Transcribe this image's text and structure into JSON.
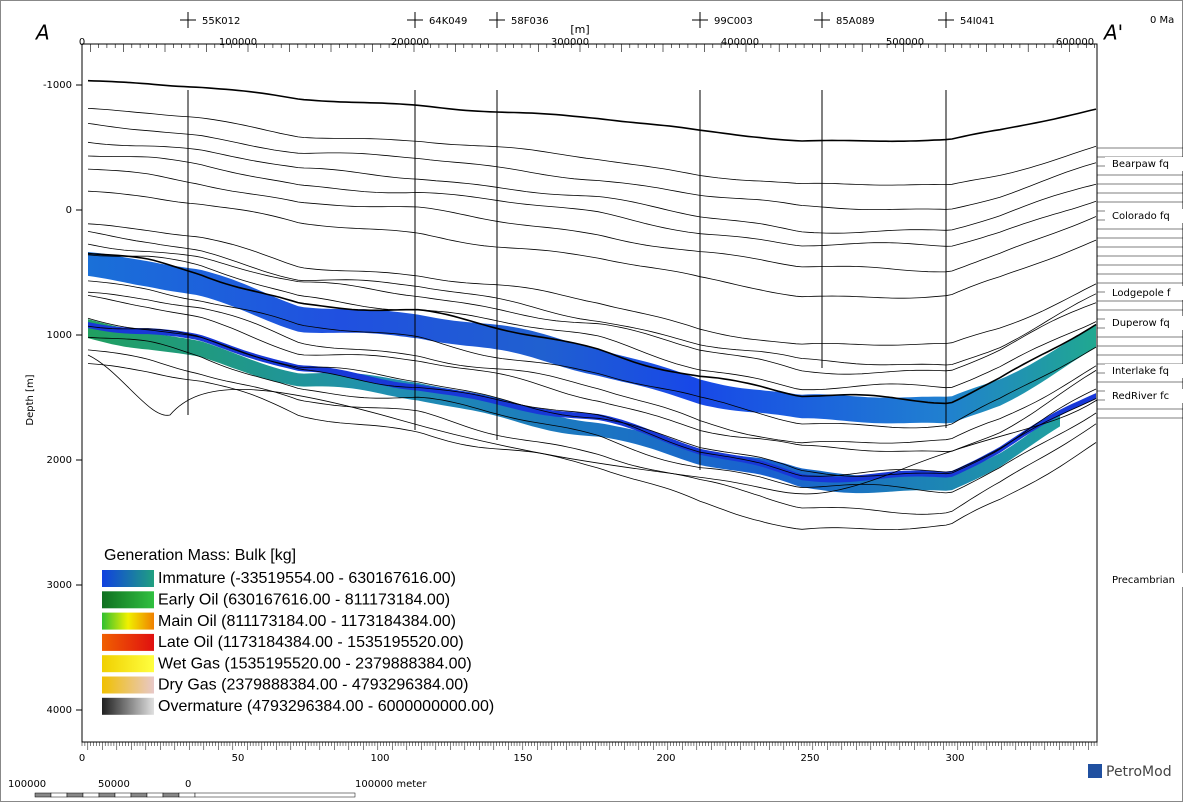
{
  "view": {
    "section_start": "A",
    "section_end": "A'",
    "time": "0 Ma",
    "top_unit": "[m]",
    "depth_label": "Depth [m]",
    "brand": "PetroMod",
    "top_ticks": [
      "0",
      "100000",
      "200000",
      "300000",
      "400000",
      "500000",
      "600000"
    ],
    "depth_ticks": [
      "-1000",
      "0",
      "1000",
      "2000",
      "3000",
      "4000"
    ],
    "bottom_ticks": [
      "0",
      "50",
      "100",
      "150",
      "200",
      "250",
      "300"
    ],
    "wells": [
      "55K012",
      "64K049",
      "58F036",
      "99C003",
      "85A089",
      "54I041"
    ],
    "formations": [
      "Bearpaw fq",
      "Colorado fq",
      "Lodgepole f",
      "Duperow fq",
      "Interlake fq",
      "RedRiver fc",
      "Precambrian"
    ],
    "scale_bar": [
      "100000",
      "50000",
      "0",
      "100000 meter"
    ]
  },
  "legend": {
    "title": "Generation Mass: Bulk [kg]",
    "items": [
      "Immature (-33519554.00 - 630167616.00)",
      "Early Oil (630167616.00 - 811173184.00)",
      "Main Oil (811173184.00 - 1173184384.00)",
      "Late Oil (1173184384.00 - 1535195520.00)",
      "Wet Gas (1535195520.00 - 2379888384.00)",
      "Dry Gas (2379888384.00 - 4793296384.00)",
      "Overmature (4793296384.00 - 6000000000.00)"
    ]
  }
}
